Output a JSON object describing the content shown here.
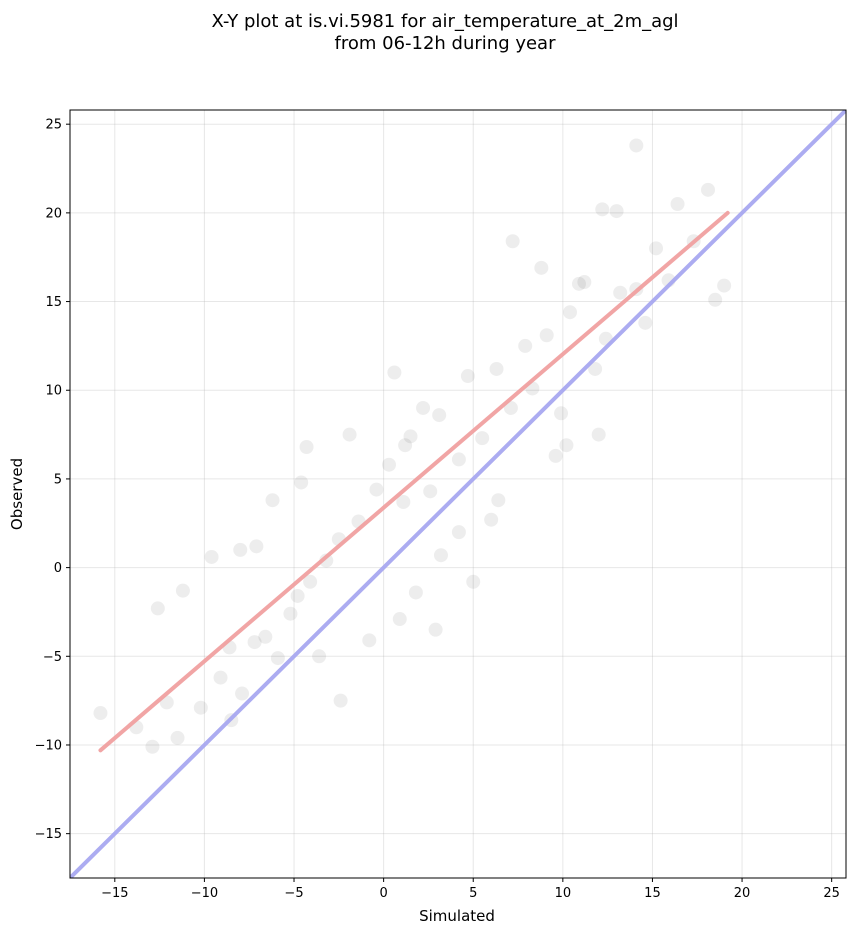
{
  "chart_data": {
    "type": "scatter",
    "title": "X-Y plot at is.vi.5981 for air_temperature_at_2m_agl",
    "subtitle": "from 06-12h during year",
    "xlabel": "Simulated",
    "ylabel": "Observed",
    "xlim": [
      -17.5,
      25.8
    ],
    "ylim": [
      -17.5,
      25.8
    ],
    "x_ticks": [
      -15,
      -10,
      -5,
      0,
      5,
      10,
      15,
      20,
      25
    ],
    "y_ticks": [
      -15,
      -10,
      -5,
      0,
      5,
      10,
      15,
      20,
      25
    ],
    "x_tick_labels": [
      "−15",
      "−10",
      "−5",
      "0",
      "5",
      "10",
      "15",
      "20",
      "25"
    ],
    "y_tick_labels": [
      "−15",
      "−10",
      "−5",
      "0",
      "5",
      "10",
      "15",
      "20",
      "25"
    ],
    "grid": true,
    "point_color": "#000000",
    "point_opacity": 0.07,
    "series": [
      {
        "type": "scatter",
        "x": [
          -15.8,
          -13.8,
          -12.9,
          -12.1,
          -11.5,
          -10.2,
          -9.1,
          -8.6,
          -8.5,
          -7.9,
          -7.2,
          -6.6,
          -5.9,
          -5.2,
          -4.8,
          -4.1,
          -3.2,
          -2.4,
          -2.5,
          -1.4,
          -0.4,
          0.3,
          1.1,
          1.5,
          2.6,
          3.1,
          4.2,
          4.7,
          5.5,
          6.3,
          7.1,
          7.9,
          8.3,
          9.1,
          9.9,
          10.4,
          11.2,
          11.8,
          12.4,
          13.2,
          14.1,
          14.6,
          15.2,
          15.9,
          16.4,
          17.3,
          18.1,
          18.5,
          19.0,
          14.1,
          12.2,
          13.0,
          10.9,
          12.0,
          9.6,
          7.2,
          6.4,
          5.0,
          3.2,
          1.8,
          0.9,
          -0.8,
          -3.6,
          -4.6,
          -6.2,
          -7.1,
          -9.6,
          -11.2,
          -12.6,
          0.6,
          2.2,
          1.2,
          -1.9,
          4.2,
          6.0,
          10.2,
          2.9,
          -4.3,
          -8.0,
          8.8
        ],
        "y": [
          -8.2,
          -9.0,
          -10.1,
          -7.6,
          -9.6,
          -7.9,
          -6.2,
          -4.5,
          -8.6,
          -7.1,
          -4.2,
          -3.9,
          -5.1,
          -2.6,
          -1.6,
          -0.8,
          0.4,
          -7.5,
          1.6,
          2.6,
          4.4,
          5.8,
          3.7,
          7.4,
          4.3,
          8.6,
          6.1,
          10.8,
          7.3,
          11.2,
          9.0,
          12.5,
          10.1,
          13.1,
          8.7,
          14.4,
          16.1,
          11.2,
          12.9,
          15.5,
          15.7,
          13.8,
          18.0,
          16.2,
          20.5,
          18.4,
          21.3,
          15.1,
          15.9,
          23.8,
          20.2,
          20.1,
          16.0,
          7.5,
          6.3,
          18.4,
          3.8,
          -0.8,
          0.7,
          -1.4,
          -2.9,
          -4.1,
          -5.0,
          4.8,
          3.8,
          1.2,
          0.6,
          -1.3,
          -2.3,
          11.0,
          9.0,
          6.9,
          7.5,
          2.0,
          2.7,
          6.9,
          -3.5,
          6.8,
          1.0,
          16.9
        ],
        "trend": "dense diagonal cloud of points, roughly 8700 points spanning Simulated -16 to 19"
      },
      {
        "type": "line",
        "x": [
          -15.8,
          19.2
        ],
        "y": [
          -10.3,
          20.0
        ],
        "color": "#f0a0a0"
      },
      {
        "type": "line",
        "x": [
          -17.5,
          25.8
        ],
        "y": [
          -17.5,
          25.8
        ],
        "color": "#a8a8f0"
      }
    ]
  }
}
